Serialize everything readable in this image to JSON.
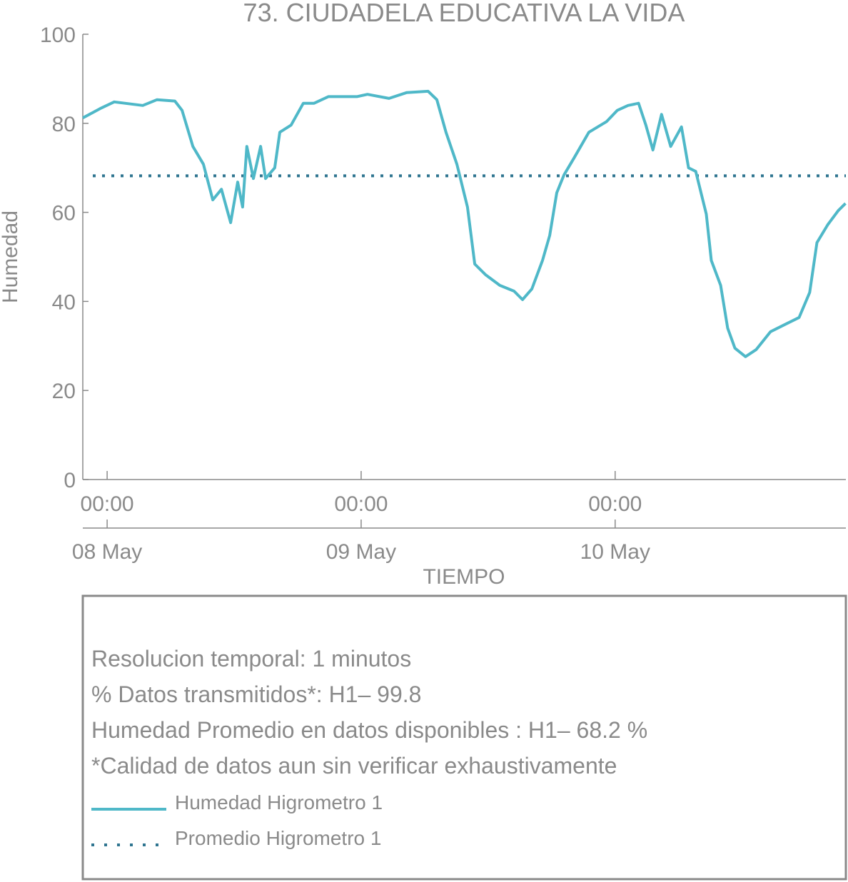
{
  "chart_data": {
    "type": "line",
    "title": "73. CIUDADELA EDUCATIVA LA VIDA",
    "xlabel": "TIEMPO",
    "ylabel": "Humedad",
    "xlim": [
      "07 May 21:42",
      "10 May 21:48"
    ],
    "ylim": [
      0,
      100
    ],
    "yticks": [
      0,
      20,
      40,
      60,
      80,
      100
    ],
    "xticks": [
      {
        "value": "08 May 00:00",
        "label": "00:00"
      },
      {
        "value": "09 May 00:00",
        "label": "00:00"
      },
      {
        "value": "10 May 00:00",
        "label": "00:00"
      }
    ],
    "xticks_date": [
      {
        "value": "08 May 00:00",
        "label": "08 May"
      },
      {
        "value": "09 May 00:00",
        "label": "09 May"
      },
      {
        "value": "10 May 00:00",
        "label": "10 May"
      }
    ],
    "x": [
      "07 May 21:42",
      "07 May 23:20",
      "08 May 00:40",
      "08 May 03:22",
      "08 May 04:43",
      "08 May 06:24",
      "08 May 07:05",
      "08 May 08:06",
      "08 May 09:06",
      "08 May 09:59",
      "08 May 10:48",
      "08 May 11:40",
      "08 May 12:20",
      "08 May 12:48",
      "08 May 13:12",
      "08 May 13:49",
      "08 May 14:30",
      "08 May 14:58",
      "08 May 15:50",
      "08 May 16:19",
      "08 May 17:23",
      "08 May 18:32",
      "08 May 19:33",
      "08 May 20:54",
      "08 May 23:36",
      "09 May 00:36",
      "09 May 02:38",
      "09 May 04:19",
      "09 May 06:20",
      "09 May 07:09",
      "09 May 08:01",
      "09 May 09:03",
      "09 May 10:03",
      "09 May 10:44",
      "09 May 11:45",
      "09 May 13:06",
      "09 May 14:27",
      "09 May 15:15",
      "09 May 16:08",
      "09 May 17:08",
      "09 May 17:49",
      "09 May 18:29",
      "09 May 19:10",
      "09 May 20:10",
      "09 May 21:31",
      "09 May 23:12",
      "10 May 00:12",
      "10 May 01:13",
      "10 May 02:13",
      "10 May 02:54",
      "10 May 03:34",
      "10 May 04:23",
      "10 May 05:15",
      "10 May 06:16",
      "10 May 06:56",
      "10 May 07:37",
      "10 May 08:37",
      "10 May 09:05",
      "10 May 09:58",
      "10 May 10:38",
      "10 May 11:19",
      "10 May 12:19",
      "10 May 13:20",
      "10 May 14:41",
      "10 May 16:02",
      "10 May 17:23",
      "10 May 18:23",
      "10 May 19:04",
      "10 May 20:05",
      "10 May 21:05",
      "10 May 21:46"
    ],
    "series": [
      {
        "name": "Humedad Higrometro 1",
        "color": "#4fb8c8",
        "values": [
          81.2,
          83.3,
          84.8,
          84,
          85.3,
          85,
          82.9,
          74.8,
          70.8,
          62.8,
          65.2,
          57.7,
          66.8,
          61.2,
          74.8,
          67.6,
          74.8,
          67.6,
          70,
          78,
          79.6,
          84.5,
          84.5,
          86,
          86,
          86.5,
          85.6,
          86.9,
          87.2,
          85.3,
          78,
          70.8,
          61.2,
          48.4,
          46,
          43.6,
          42.3,
          40.4,
          42.8,
          49.2,
          54.8,
          64.4,
          68.4,
          72.4,
          78,
          80.4,
          82.9,
          84,
          84.5,
          79.6,
          74,
          82,
          74.8,
          79.2,
          70,
          69.2,
          59.6,
          49.2,
          43.6,
          34,
          29.5,
          27.6,
          29.2,
          33.2,
          34.8,
          36.4,
          42,
          53.2,
          57.2,
          60.4,
          62
        ]
      }
    ],
    "average": {
      "name": "Promedio Higrometro 1",
      "value": 68.2,
      "color": "#2f7590"
    },
    "info": [
      "Resolucion temporal: 1 minutos",
      "% Datos transmitidos*: H1– 99.8",
      "Humedad Promedio en datos disponibles : H1– 68.2 %",
      "*Calidad de datos aun sin verificar exhaustivamente"
    ]
  }
}
